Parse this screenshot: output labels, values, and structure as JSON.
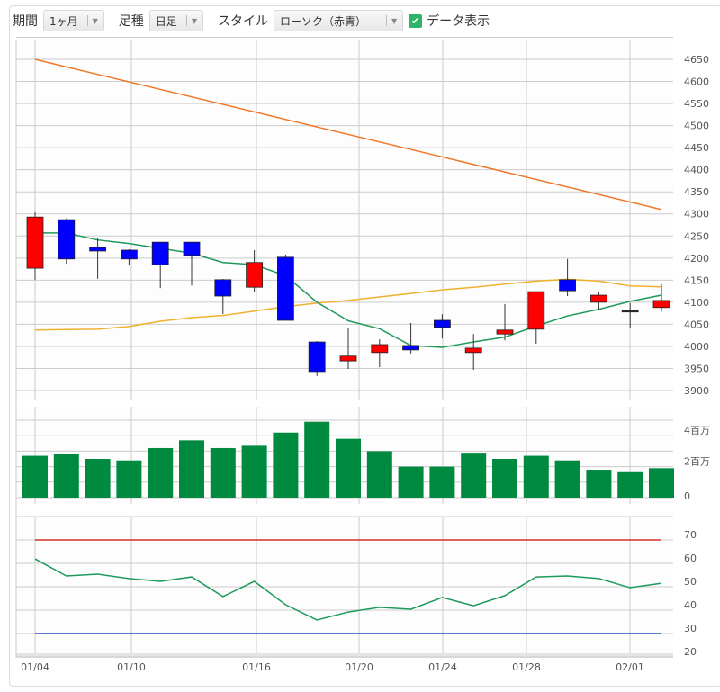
{
  "toolbar": {
    "period_label": "期間",
    "period_value": "1ヶ月",
    "bar_type_label": "足種",
    "bar_type_value": "日足",
    "style_label": "スタイル",
    "style_value": "ローソク（赤青）",
    "show_data_label": "データ表示",
    "show_data_checked": true
  },
  "chart_data": {
    "type": "candlestick",
    "x_tick_labels": [
      "01/04",
      "01/10",
      "01/16",
      "01/20",
      "01/24",
      "01/28",
      "02/01"
    ],
    "price_axis": {
      "ticks": [
        3900,
        3950,
        4000,
        4050,
        4100,
        4150,
        4200,
        4250,
        4300,
        4350,
        4400,
        4450,
        4500,
        4550,
        4600,
        4650
      ],
      "range": [
        3900,
        4650
      ]
    },
    "colors": {
      "up": "#ff0000",
      "down": "#0000ff",
      "ma_short": "#1e9a5a",
      "ma_mid": "#f0b030",
      "ma_long": "#f07828",
      "volume": "#008a40",
      "rsi": "#1e9a5a",
      "rsi_upper": "#d03020",
      "rsi_lower": "#2050c0"
    },
    "ohlc": [
      [
        4177,
        4304,
        4151,
        4293
      ],
      [
        4287,
        4290,
        4187,
        4198
      ],
      [
        4224,
        4246,
        4153,
        4216
      ],
      [
        4218,
        4220,
        4183,
        4198
      ],
      [
        4236,
        4236,
        4132,
        4185
      ],
      [
        4236,
        4236,
        4138,
        4206
      ],
      [
        4151,
        4153,
        4073,
        4114
      ],
      [
        4134,
        4218,
        4124,
        4190
      ],
      [
        4202,
        4208,
        4059,
        4059
      ],
      [
        4010,
        4012,
        3933,
        3943
      ],
      [
        3967,
        4041,
        3949,
        3978
      ],
      [
        3986,
        4016,
        3953,
        4004
      ],
      [
        4002,
        4053,
        3984,
        3992
      ],
      [
        4059,
        4073,
        4018,
        4043
      ],
      [
        3986,
        4028,
        3947,
        3996
      ],
      [
        4028,
        4096,
        4014,
        4037
      ],
      [
        4039,
        4124,
        4006,
        4124
      ],
      [
        4151,
        4198,
        4114,
        4126
      ],
      [
        4100,
        4124,
        4083,
        4116
      ],
      [
        4081,
        4098,
        4041,
        4081
      ],
      [
        4088,
        4141,
        4079,
        4104
      ]
    ],
    "ma_short": [
      4257,
      4257,
      4241,
      4233,
      4222,
      4211,
      4190,
      4185,
      4160,
      4100,
      4058,
      4040,
      4002,
      3998,
      4010,
      4021,
      4046,
      4069,
      4084,
      4102,
      4116
    ],
    "ma_mid": [
      4037,
      4038,
      4039,
      4045,
      4057,
      4065,
      4070,
      4080,
      4090,
      4098,
      4104,
      4112,
      4120,
      4128,
      4134,
      4141,
      4148,
      4152,
      4148,
      4137,
      4135
    ],
    "ma_long": {
      "start": 4650,
      "end": 4310
    },
    "volume_axis": {
      "ticks": [
        0,
        2,
        4
      ],
      "tick_labels": [
        "0",
        "2百万",
        "4百万"
      ],
      "unit": "百万"
    },
    "volume": [
      2.7,
      2.8,
      2.5,
      2.4,
      3.2,
      3.7,
      3.2,
      3.35,
      4.2,
      4.9,
      3.8,
      3.0,
      2.0,
      2.0,
      2.9,
      2.5,
      2.7,
      2.4,
      1.8,
      1.7,
      1.9
    ],
    "rsi_axis": {
      "ticks": [
        20,
        30,
        40,
        50,
        60,
        70
      ]
    },
    "rsi_bands": [
      70,
      30
    ],
    "rsi": [
      61.9,
      54.6,
      55.4,
      53.5,
      52.3,
      54.2,
      45.8,
      52.3,
      42.3,
      35.8,
      39.2,
      41.2,
      40.4,
      45.4,
      41.9,
      46.2,
      54.2,
      54.6,
      53.5,
      49.6,
      51.5
    ]
  }
}
